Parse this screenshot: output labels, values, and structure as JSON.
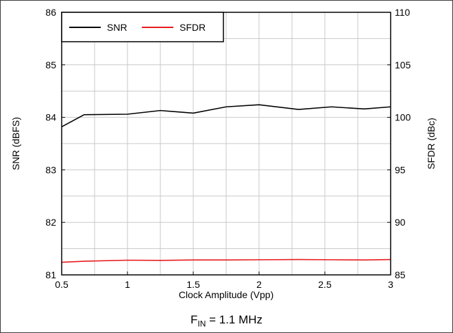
{
  "caption": {
    "main": "F",
    "sub": "IN",
    "rest": " = 1.1 MHz"
  },
  "colors": {
    "snr": "#000000",
    "sfdr": "#e8191b",
    "grid": "#c8c8c8"
  },
  "chart_data": {
    "type": "line",
    "x": [
      0.5,
      0.67,
      1.0,
      1.25,
      1.5,
      1.75,
      2.0,
      2.3,
      2.55,
      2.8,
      3.0
    ],
    "xlabel": "Clock Amplitude (Vpp)",
    "xlim": [
      0.5,
      3
    ],
    "xticks": [
      0.5,
      1,
      1.5,
      2,
      2.5,
      3
    ],
    "xtick_labels": [
      "0.5",
      "1",
      "1.5",
      "2",
      "2.5",
      "3"
    ],
    "y_left": {
      "label": "SNR (dBFS)",
      "lim": [
        81,
        86
      ],
      "ticks": [
        81,
        82,
        83,
        84,
        85,
        86
      ],
      "tick_labels": [
        "81",
        "82",
        "83",
        "84",
        "85",
        "86"
      ]
    },
    "y_right": {
      "label": "SFDR (dBc)",
      "lim": [
        85,
        110
      ],
      "ticks": [
        85,
        90,
        95,
        100,
        105,
        110
      ],
      "tick_labels": [
        "85",
        "90",
        "95",
        "100",
        "105",
        "110"
      ]
    },
    "series": [
      {
        "name": "SNR",
        "axis": "left",
        "color": "#000000",
        "values": [
          83.82,
          84.05,
          84.06,
          84.13,
          84.08,
          84.2,
          84.24,
          84.15,
          84.2,
          84.16,
          84.2
        ]
      },
      {
        "name": "SFDR",
        "axis": "right",
        "color": "#e8191b",
        "values": [
          86.2,
          86.3,
          86.4,
          86.38,
          86.42,
          86.42,
          86.44,
          86.46,
          86.44,
          86.42,
          86.46
        ]
      }
    ],
    "grid": true,
    "legend_position": "top-left"
  }
}
